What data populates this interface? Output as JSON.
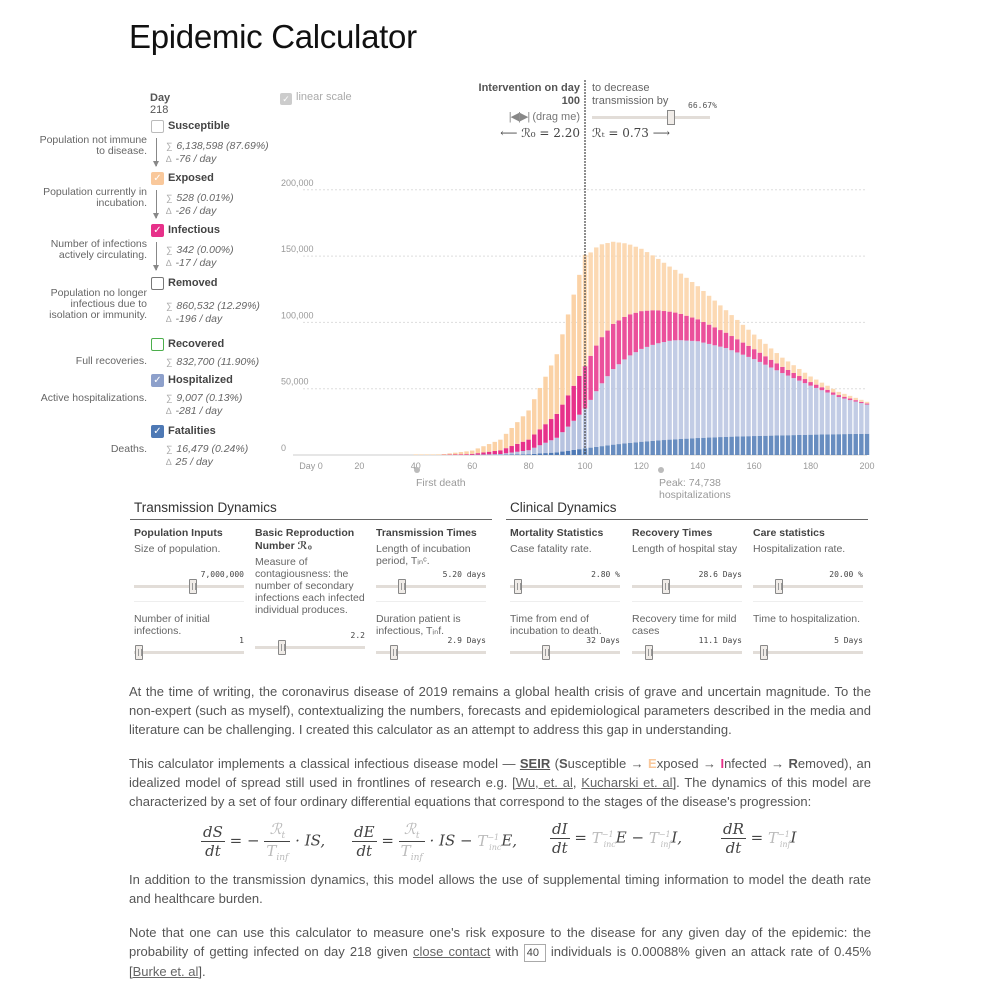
{
  "title": "Epidemic Calculator",
  "legend": {
    "day_label": "Day",
    "day_value": "218",
    "compartments": [
      {
        "key": "susceptible",
        "name": "Susceptible",
        "checked": false,
        "color": "#cccccc",
        "desc": "Population not immune to disease.",
        "total": "6,138,598 (87.69%)",
        "delta": "-76 / day"
      },
      {
        "key": "exposed",
        "name": "Exposed",
        "checked": true,
        "color": "#f9c89b",
        "desc": "Population currently in incubation.",
        "total": "528 (0.01%)",
        "delta": "-26 / day"
      },
      {
        "key": "infectious",
        "name": "Infectious",
        "checked": true,
        "color": "#e7318a",
        "desc_html": "Number of infections <i>actively</i> circulating.",
        "desc": "Number of infections actively circulating.",
        "total": "342 (0.00%)",
        "delta": "-17 / day"
      },
      {
        "key": "removed",
        "name": "Removed",
        "checked": false,
        "color": "#777777",
        "desc": "Population no longer infectious due to isolation or immunity.",
        "total": "860,532 (12.29%)",
        "delta": "-196 / day"
      },
      {
        "key": "recovered",
        "name": "Recovered",
        "checked": false,
        "color": "#4cae4c",
        "desc": "Full recoveries.",
        "total": "832,700 (11.90%)",
        "delta": ""
      },
      {
        "key": "hospitalized",
        "name": "Hospitalized",
        "checked": true,
        "color": "#8da0cb",
        "desc": "Active hospitalizations.",
        "total": "9,007 (0.13%)",
        "delta": "-281 / day"
      },
      {
        "key": "fatalities",
        "name": "Fatalities",
        "checked": true,
        "color": "#4e79b5",
        "desc": "Deaths.",
        "total": "16,479 (0.24%)",
        "delta": "25 / day"
      }
    ]
  },
  "chart_controls": {
    "linear_scale_label": "linear scale",
    "intervention_title": "Intervention on day",
    "intervention_day": "100",
    "drag_hint": "(drag me)",
    "r0_text": "⟵ ℛ₀ = 2.20",
    "decrease_text": "to decrease transmission by",
    "decrease_pct": "66.67%",
    "decrease_fraction": 0.6667,
    "rt_text": "ℛₜ = 0.73 ⟶",
    "first_death": "First death",
    "peak_hosp": "Peak: 74,738 hospitalizations"
  },
  "chart_data": {
    "type": "bar",
    "stacked": true,
    "x_start": 0,
    "x_end": 200,
    "ylim": [
      0,
      230000
    ],
    "y_ticks": [
      {
        "value": 0,
        "label": "0"
      },
      {
        "value": 50000,
        "label": "50,000"
      },
      {
        "value": 100000,
        "label": "100,000"
      },
      {
        "value": 150000,
        "label": "150,000"
      },
      {
        "value": 200000,
        "label": "200,000"
      }
    ],
    "x_ticks": [
      {
        "value": 0,
        "label": "Day 0"
      },
      {
        "value": 20,
        "label": "20"
      },
      {
        "value": 40,
        "label": "40"
      },
      {
        "value": 60,
        "label": "60"
      },
      {
        "value": 80,
        "label": "80"
      },
      {
        "value": 100,
        "label": "100"
      },
      {
        "value": 120,
        "label": "120"
      },
      {
        "value": 140,
        "label": "140"
      },
      {
        "value": 160,
        "label": "160"
      },
      {
        "value": 180,
        "label": "180"
      },
      {
        "value": 200,
        "label": "200"
      }
    ],
    "intervention_day": 100,
    "first_death_day": 40,
    "peak_hospital_day": 133,
    "series_order": [
      "fatalities",
      "hospitalized",
      "infectious",
      "exposed"
    ],
    "series": [
      {
        "name": "Fatalities",
        "color": "#4e79b5",
        "x": [
          60,
          70,
          80,
          90,
          100,
          110,
          120,
          130,
          140,
          150,
          160,
          170,
          180,
          190,
          200
        ],
        "values": [
          30,
          150,
          600,
          2000,
          5000,
          7800,
          10000,
          11600,
          12800,
          13700,
          14300,
          14800,
          15300,
          15700,
          16000
        ]
      },
      {
        "name": "Hospitalized",
        "color": "#b7c3e0",
        "x": [
          60,
          70,
          80,
          90,
          95,
          100,
          105,
          110,
          115,
          120,
          125,
          130,
          133,
          140,
          150,
          160,
          170,
          180,
          190,
          200
        ],
        "values": [
          100,
          600,
          3000,
          11000,
          20000,
          30000,
          45000,
          57000,
          65000,
          70000,
          73000,
          74500,
          74738,
          73000,
          67000,
          58000,
          47000,
          37000,
          28000,
          22000
        ]
      },
      {
        "name": "Infectious",
        "color": "#e7318a",
        "x": [
          50,
          60,
          70,
          80,
          90,
          95,
          100,
          105,
          110,
          115,
          120,
          125,
          130,
          140,
          150,
          160,
          170,
          180,
          190,
          200
        ],
        "values": [
          150,
          700,
          2800,
          8000,
          18000,
          25000,
          32000,
          35000,
          34000,
          31500,
          28500,
          25500,
          22000,
          16500,
          11500,
          7500,
          4600,
          2700,
          1500,
          800
        ]
      },
      {
        "name": "Exposed",
        "color": "#fbd2a6",
        "x": [
          40,
          50,
          60,
          70,
          80,
          90,
          95,
          99,
          100,
          102,
          105,
          110,
          115,
          120,
          125,
          130,
          140,
          150,
          160,
          170,
          180,
          190,
          200
        ],
        "values": [
          100,
          600,
          2500,
          8000,
          22000,
          45000,
          65000,
          80000,
          84000,
          78000,
          72000,
          62000,
          54000,
          47000,
          40000,
          34000,
          25000,
          17000,
          11000,
          7000,
          4200,
          2400,
          1300
        ]
      }
    ]
  },
  "transmission": {
    "title": "Transmission Dynamics",
    "col1": {
      "head": "Population Inputs",
      "desc": "Size of population.",
      "value": "7,000,000",
      "pos": 0.52,
      "desc2": "Number of initial infections.",
      "value2": "1",
      "pos2": 0.03
    },
    "col2": {
      "head": "Basic Reproduction Number ℛ₀",
      "desc": "Measure of contagiousness: the number of secondary infections each infected individual produces.",
      "value": "2.2",
      "pos": 0.24
    },
    "col3": {
      "head": "Transmission Times",
      "desc": "Length of incubation period, Tᵢₙᶜ.",
      "value": "5.20 days",
      "pos": 0.22,
      "desc2": "Duration patient is infectious, Tᵢₙf.",
      "value2": "2.9 Days",
      "pos2": 0.14
    }
  },
  "clinical": {
    "title": "Clinical Dynamics",
    "col1": {
      "head": "Mortality Statistics",
      "desc": "Case fatality rate.",
      "value": "2.80 %",
      "pos": 0.04,
      "desc2": "Time from end of incubation to death.",
      "value2": "32 Days",
      "pos2": 0.3
    },
    "col2": {
      "head": "Recovery Times",
      "desc": "Length of hospital stay",
      "value": "28.6 Days",
      "pos": 0.27,
      "desc2": "Recovery time for mild cases",
      "value2": "11.1 Days",
      "pos2": 0.1
    },
    "col3": {
      "head": "Care statistics",
      "desc": "Hospitalization rate.",
      "value": "20.00 %",
      "pos": 0.21,
      "desc2": "Time to hospitalization.",
      "value2": "5 Days",
      "pos2": 0.07
    }
  },
  "text": {
    "p1": "At the time of writing, the coronavirus disease of 2019 remains a global health crisis of grave and uncertain magnitude. To the non-expert (such as myself), contextualizing the numbers, forecasts and epidemiological parameters described in the media and literature can be challenging. I created this calculator as an attempt to address this gap in understanding.",
    "p2_a": "This calculator implements a classical infectious disease model — ",
    "p2_seir": "SEIR",
    "p2_b": " (",
    "p2_S": "S",
    "p2_s_rest": "usceptible → ",
    "p2_E": "E",
    "p2_e_rest": "xposed → ",
    "p2_I": "I",
    "p2_i_rest": "nfected → ",
    "p2_R": "R",
    "p2_r_rest": "emoved), an idealized model of spread still used in frontlines of research e.g. [",
    "p2_link1": "Wu, et. al",
    "p2_comma": ", ",
    "p2_link2": "Kucharski et. al",
    "p2_c": "]. The dynamics of this model are characterized by a set of four ordinary differential equations that correspond to the stages of the disease's progression:",
    "p3": "In addition to the transmission dynamics, this model allows the use of supplemental timing information to model the death rate and healthcare burden.",
    "p4_a": "Note that one can use this calculator to measure one's risk exposure to the disease for any given day of the epidemic: the probability of getting infected on day 218 given ",
    "p4_link": "close contact",
    "p4_b": " with ",
    "p4_input": "40",
    "p4_c": " individuals is 0.00088% given an attack rate of 0.45% [",
    "p4_link2": "Burke et. al",
    "p4_d": "]."
  },
  "colors": {
    "exposed": "#f9c89b",
    "infectious": "#e7318a",
    "hospitalized": "#8da0cb",
    "fatalities": "#4e79b5",
    "recovered": "#4cae4c"
  }
}
